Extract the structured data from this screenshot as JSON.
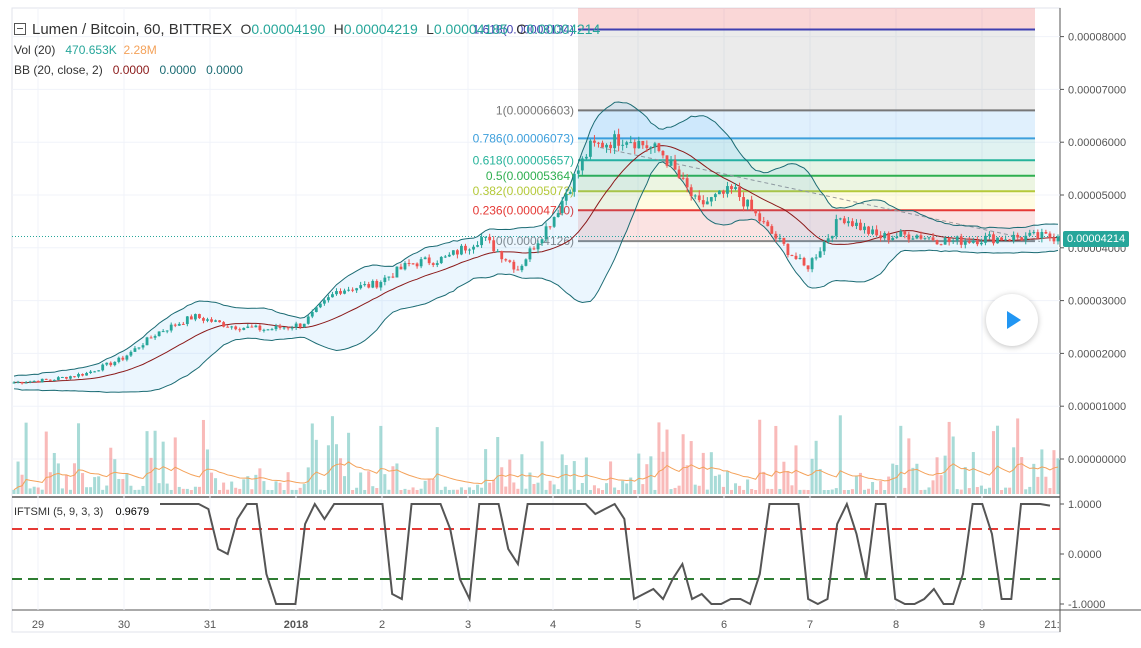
{
  "header": {
    "symbol": "Lumen / Bitcoin, 60, BITTREX",
    "o_label": "O",
    "o_value": "0.00004190",
    "h_label": "H",
    "h_value": "0.00004219",
    "l_label": "L",
    "l_value": "0.00004185",
    "c_label": "C",
    "c_value": "0.00004214",
    "vol_label": "Vol (20)",
    "vol_value": "470.653K",
    "vol_ma": "2.28M",
    "bb_label": "BB (20, close, 2)",
    "bb_v1": "0.0000",
    "bb_v2": "0.0000",
    "bb_v3": "0.0000",
    "ind_label": "IFTSMI (5, 9, 3, 3)",
    "ind_value": "0.9679"
  },
  "chart_data": {
    "type": "candlestick",
    "x_ticks": [
      "29",
      "30",
      "31",
      "2018",
      "2",
      "3",
      "4",
      "5",
      "6",
      "7",
      "8",
      "9",
      "21:"
    ],
    "y_ticks": [
      "0.00008000",
      "0.00007000",
      "0.00006000",
      "0.00005000",
      "0.00004000",
      "0.00003000",
      "0.00002000",
      "0.00001000",
      "0.00000000"
    ],
    "ylim": [
      0,
      8.8e-05
    ],
    "last_price": "0.00004214",
    "price_path": [
      1.45e-05,
      1.5e-05,
      1.62e-05,
      1.9e-05,
      2.4e-05,
      2.7e-05,
      2.52e-05,
      2.45e-05,
      2.55e-05,
      3.2e-05,
      3.3e-05,
      3.7e-05,
      3.8e-05,
      4.2e-05,
      3.6e-05,
      4.6e-05,
      5.9e-05,
      6.1e-05,
      5.8e-05,
      4.8e-05,
      5.1e-05,
      4.3e-05,
      3.6e-05,
      4.6e-05,
      4.2e-05,
      4.25e-05,
      4.12e-05,
      4.18e-05,
      4.2e-05,
      4.21e-05
    ],
    "fib_levels": [
      {
        "label": "0(0.00004126)",
        "value": 4.126e-05,
        "color": "#888888"
      },
      {
        "label": "0.236(0.00004710)",
        "value": 4.71e-05,
        "color": "#e53935"
      },
      {
        "label": "0.382(0.00005072)",
        "value": 5.072e-05,
        "color": "#b5c93a"
      },
      {
        "label": "0.5(0.00005364)",
        "value": 5.364e-05,
        "color": "#2eaf4f"
      },
      {
        "label": "0.618(0.00005657)",
        "value": 5.657e-05,
        "color": "#26b39a"
      },
      {
        "label": "0.786(0.00006073)",
        "value": 6.073e-05,
        "color": "#3d9fdc"
      },
      {
        "label": "1(0.00006603)",
        "value": 6.603e-05,
        "color": "#777777"
      },
      {
        "label": "1.618(0.00008134)",
        "value": 8.134e-05,
        "color": "#3f3fb0"
      }
    ],
    "volume_ma_color": "#f4a25a",
    "indicator": {
      "name": "IFTSMI",
      "y_ticks": [
        "1.0000",
        "0.0000",
        "-1.0000"
      ],
      "upper_level": 0.5,
      "lower_level": -0.5,
      "values": [
        1,
        1,
        1,
        1,
        1,
        0.9,
        0.1,
        0.0,
        0.7,
        1,
        1,
        -0.4,
        -1,
        -1,
        -1,
        0.6,
        1,
        0.7,
        1,
        1,
        1,
        1,
        1,
        1,
        -0.8,
        -0.9,
        1,
        1,
        1,
        1,
        0.5,
        -0.5,
        -0.9,
        1,
        1,
        1,
        0.1,
        -0.2,
        1,
        1,
        1,
        1,
        1,
        1,
        1,
        0.8,
        0.9,
        1,
        0.7,
        -0.9,
        -0.8,
        -0.7,
        -0.9,
        -0.5,
        -0.2,
        -0.9,
        -0.8,
        -1,
        -1,
        -0.9,
        -0.9,
        -1,
        -0.4,
        1,
        1,
        1,
        1,
        -0.9,
        -1,
        -0.9,
        0.6,
        1,
        0.4,
        -0.5,
        1,
        1,
        -0.9,
        -1,
        -1,
        -0.9,
        -0.7,
        -1,
        -1,
        -0.4,
        1,
        1,
        0.4,
        -0.9,
        -0.9,
        1,
        1,
        1,
        0.9679
      ]
    }
  }
}
